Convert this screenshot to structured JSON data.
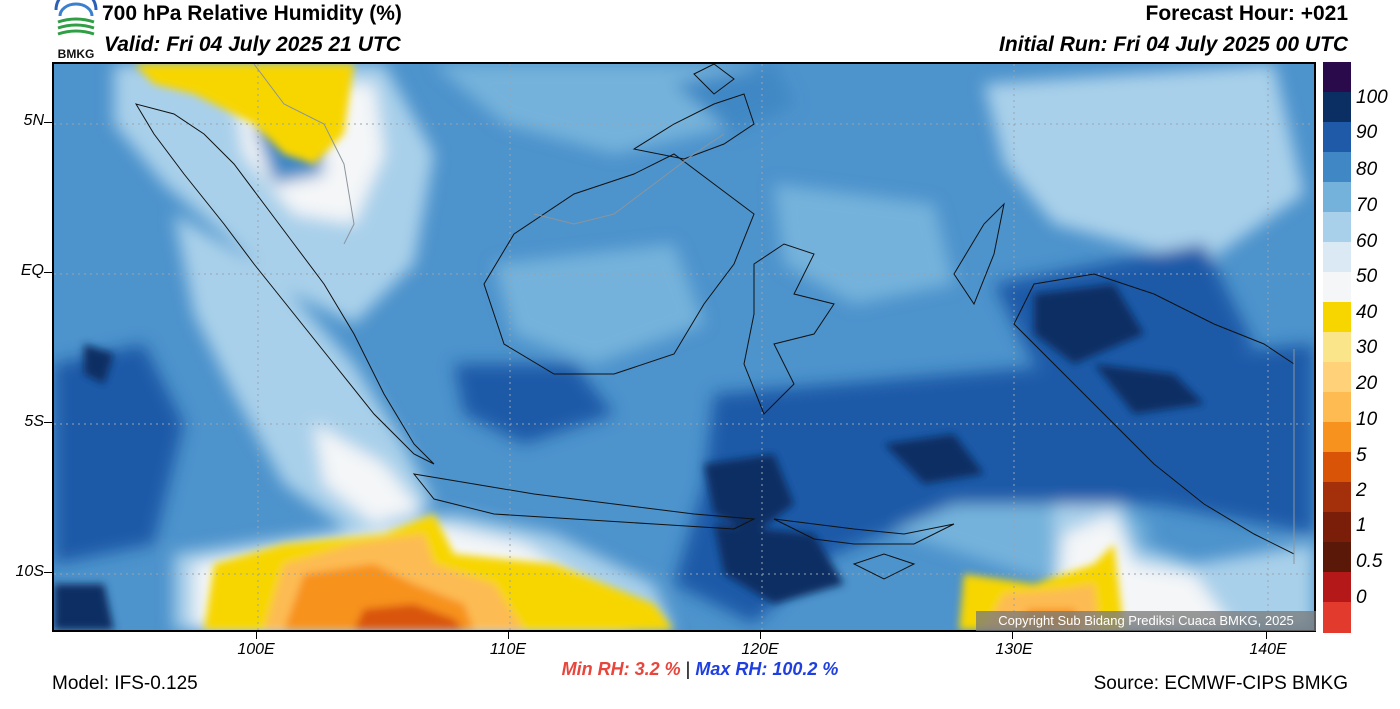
{
  "header": {
    "title": "700 hPa Relative Humidity (%)",
    "valid": "Valid: Fri 04 July 2025 21 UTC",
    "forecast_hour": "Forecast Hour: +021",
    "initial_run": "Initial Run: Fri 04 July 2025 00 UTC",
    "logo_text": "BMKG"
  },
  "map": {
    "lat_labels": [
      "5N",
      "EQ",
      "5S",
      "10S"
    ],
    "lon_labels": [
      "100E",
      "110E",
      "120E",
      "130E",
      "140E"
    ],
    "copyright": "Copyright Sub Bidang Prediksi Cuaca BMKG, 2025"
  },
  "colorbar": {
    "labels": [
      "100",
      "90",
      "80",
      "70",
      "60",
      "50",
      "40",
      "30",
      "20",
      "10",
      "5",
      "2",
      "1",
      "0.5",
      "0"
    ],
    "colors": [
      "#2a0a4a",
      "#0c2f63",
      "#1e5aa8",
      "#3f88c5",
      "#75b2db",
      "#a9d0ea",
      "#dbe9f4",
      "#f4f6f8",
      "#f7d600",
      "#fbe58a",
      "#ffd27a",
      "#fdbb52",
      "#f7921f",
      "#d95407",
      "#a3300a",
      "#7a1e0a",
      "#5a1809",
      "#b51818",
      "#e23a2c"
    ]
  },
  "stats": {
    "min_label": "Min RH:",
    "min_value": "3.2 %",
    "separator": "|",
    "max_text": "Max RH: 100.2 %"
  },
  "footer": {
    "model": "Model: IFS-0.125",
    "source": "Source: ECMWF-CIPS BMKG"
  }
}
